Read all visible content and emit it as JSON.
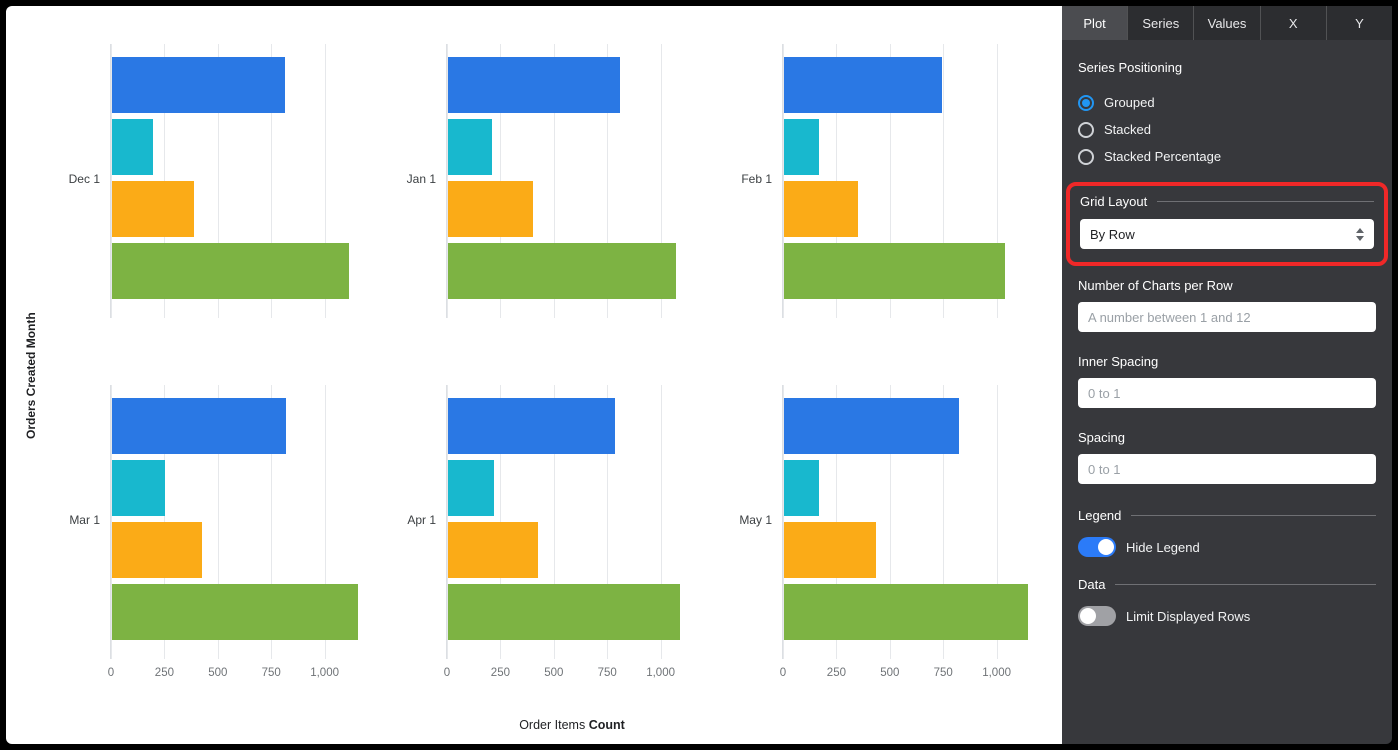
{
  "panel": {
    "tabs": [
      {
        "label": "Plot",
        "active": true
      },
      {
        "label": "Series",
        "active": false
      },
      {
        "label": "Values",
        "active": false
      },
      {
        "label": "X",
        "active": false
      },
      {
        "label": "Y",
        "active": false
      }
    ],
    "series_positioning": {
      "label": "Series Positioning",
      "options": [
        {
          "label": "Grouped",
          "selected": true
        },
        {
          "label": "Stacked",
          "selected": false
        },
        {
          "label": "Stacked Percentage",
          "selected": false
        }
      ]
    },
    "grid_layout": {
      "label": "Grid Layout",
      "value": "By Row"
    },
    "charts_per_row": {
      "label": "Number of Charts per Row",
      "value": "",
      "placeholder": "A number between 1 and 12"
    },
    "inner_spacing": {
      "label": "Inner Spacing",
      "value": "",
      "placeholder": "0 to 1"
    },
    "spacing": {
      "label": "Spacing",
      "value": "",
      "placeholder": "0 to 1"
    },
    "legend_section": {
      "label": "Legend",
      "toggle_label": "Hide Legend",
      "toggle_on": true
    },
    "data_section": {
      "label": "Data",
      "toggle_label": "Limit Displayed Rows",
      "toggle_on": false
    }
  },
  "annotation": {
    "type": "highlight-box",
    "color": "#ef2828",
    "target": "Grid Layout"
  },
  "chart_data": {
    "type": "bar",
    "orientation": "horizontal",
    "layout": "small-multiples 2 rows x 3 columns",
    "ylabel": "Orders Created Month",
    "xlabel": "Order Items Count",
    "xlabel_parts": {
      "regular": "Order Items",
      "bold": "Count"
    },
    "x_ticks": [
      0,
      250,
      500,
      750,
      1000
    ],
    "x_tick_labels": [
      "0",
      "250",
      "500",
      "750",
      "1,000"
    ],
    "xmax": 1175,
    "grid": true,
    "legend": "hidden",
    "series_colors": [
      "#2a78e4",
      "#18b8ce",
      "#fbab17",
      "#7db343"
    ],
    "subplots": [
      {
        "category": "Dec 1",
        "values": [
          810,
          190,
          385,
          1110
        ]
      },
      {
        "category": "Jan 1",
        "values": [
          805,
          205,
          400,
          1065
        ]
      },
      {
        "category": "Feb 1",
        "values": [
          740,
          165,
          345,
          1035
        ]
      },
      {
        "category": "Mar 1",
        "values": [
          815,
          250,
          420,
          1150
        ]
      },
      {
        "category": "Apr 1",
        "values": [
          780,
          215,
          420,
          1085
        ]
      },
      {
        "category": "May 1",
        "values": [
          820,
          165,
          430,
          1140
        ]
      }
    ]
  }
}
